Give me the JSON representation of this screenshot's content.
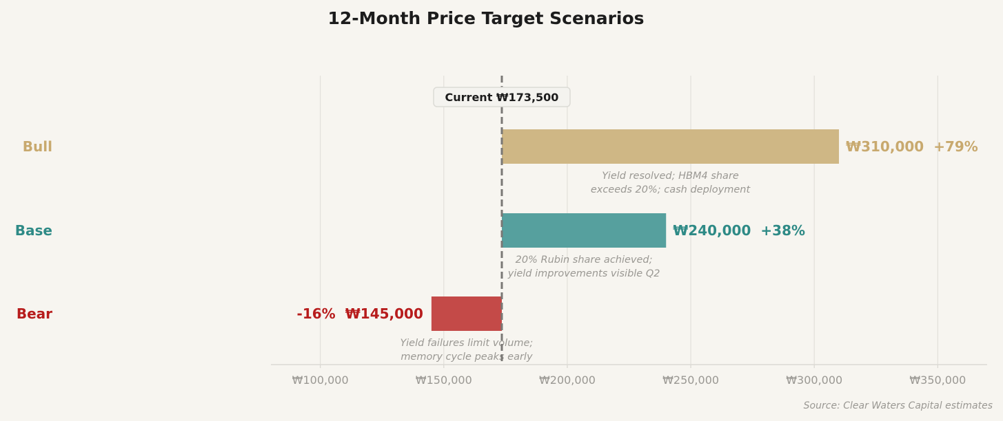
{
  "chart_data": {
    "type": "bar",
    "orientation": "horizontal",
    "title": "12-Month Price Target Scenarios",
    "xlabel": "",
    "ylabel": "",
    "xlim": [
      80000,
      370000
    ],
    "x_ticks": [
      100000,
      150000,
      200000,
      250000,
      300000,
      350000
    ],
    "x_tick_labels": [
      "₩100,000",
      "₩150,000",
      "₩200,000",
      "₩250,000",
      "₩300,000",
      "₩350,000"
    ],
    "grid": "vertical",
    "current": {
      "value": 173500,
      "label": "Current  ₩173,500"
    },
    "scenarios": [
      {
        "name": "Bull",
        "target": 310000,
        "value_label": "₩310,000",
        "change_label": "+79%",
        "note": [
          "Yield resolved; HBM4 share",
          "exceeds 20%; cash deployment"
        ],
        "bar_color": "#cfb785",
        "text_color": "#c8a96e"
      },
      {
        "name": "Base",
        "target": 240000,
        "value_label": "₩240,000",
        "change_label": "+38%",
        "note": [
          "20% Rubin share achieved;",
          "yield improvements visible Q2"
        ],
        "bar_color": "#56a09e",
        "text_color": "#2e8a86"
      },
      {
        "name": "Bear",
        "target": 145000,
        "value_label": "₩145,000",
        "change_label": "-16%",
        "note": [
          "Yield failures limit volume;",
          "memory cycle peaks early"
        ],
        "bar_color": "#c44a48",
        "text_color": "#b71c1c"
      }
    ],
    "source": "Source: Clear Waters Capital estimates"
  }
}
